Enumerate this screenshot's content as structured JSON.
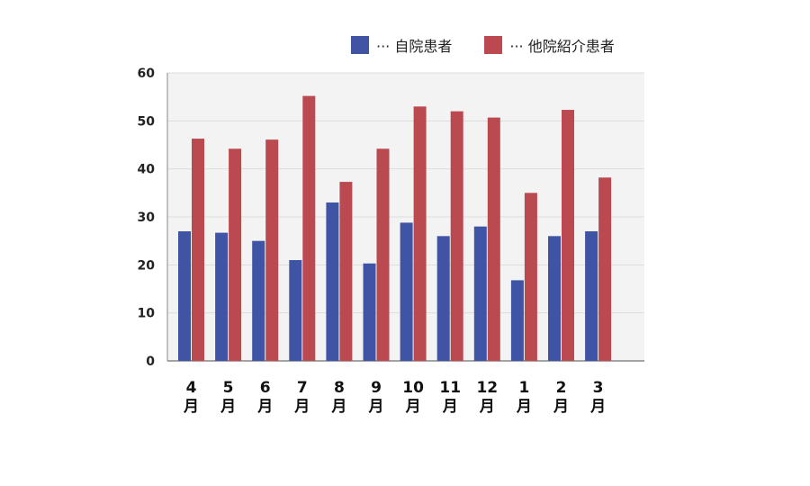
{
  "chart_data": {
    "type": "bar",
    "categories": [
      "4月",
      "5月",
      "6月",
      "7月",
      "8月",
      "9月",
      "10月",
      "11月",
      "12月",
      "1月",
      "2月",
      "3月"
    ],
    "category_numbers": [
      "4",
      "5",
      "6",
      "7",
      "8",
      "9",
      "10",
      "11",
      "12",
      "1",
      "2",
      "3"
    ],
    "category_unit": "月",
    "series": [
      {
        "name": "自院患者",
        "legend_label": "··· 自院患者",
        "color": "#4054a6",
        "values": [
          27,
          26.7,
          25,
          21,
          33,
          20.3,
          28.8,
          26,
          28,
          16.8,
          26,
          27
        ]
      },
      {
        "name": "他院紹介患者",
        "legend_label": "··· 他院紹介患者",
        "color": "#bb4a50",
        "values": [
          46.3,
          44.2,
          46.1,
          55.2,
          37.3,
          44.2,
          53,
          52,
          50.7,
          35,
          52.3,
          38.2
        ]
      }
    ],
    "ylim": [
      0,
      60
    ],
    "yticks": [
      "0",
      "10",
      "20",
      "30",
      "40",
      "50",
      "60"
    ],
    "grid": true,
    "legend_position": "top-right",
    "title": "",
    "xlabel": "",
    "ylabel": ""
  }
}
